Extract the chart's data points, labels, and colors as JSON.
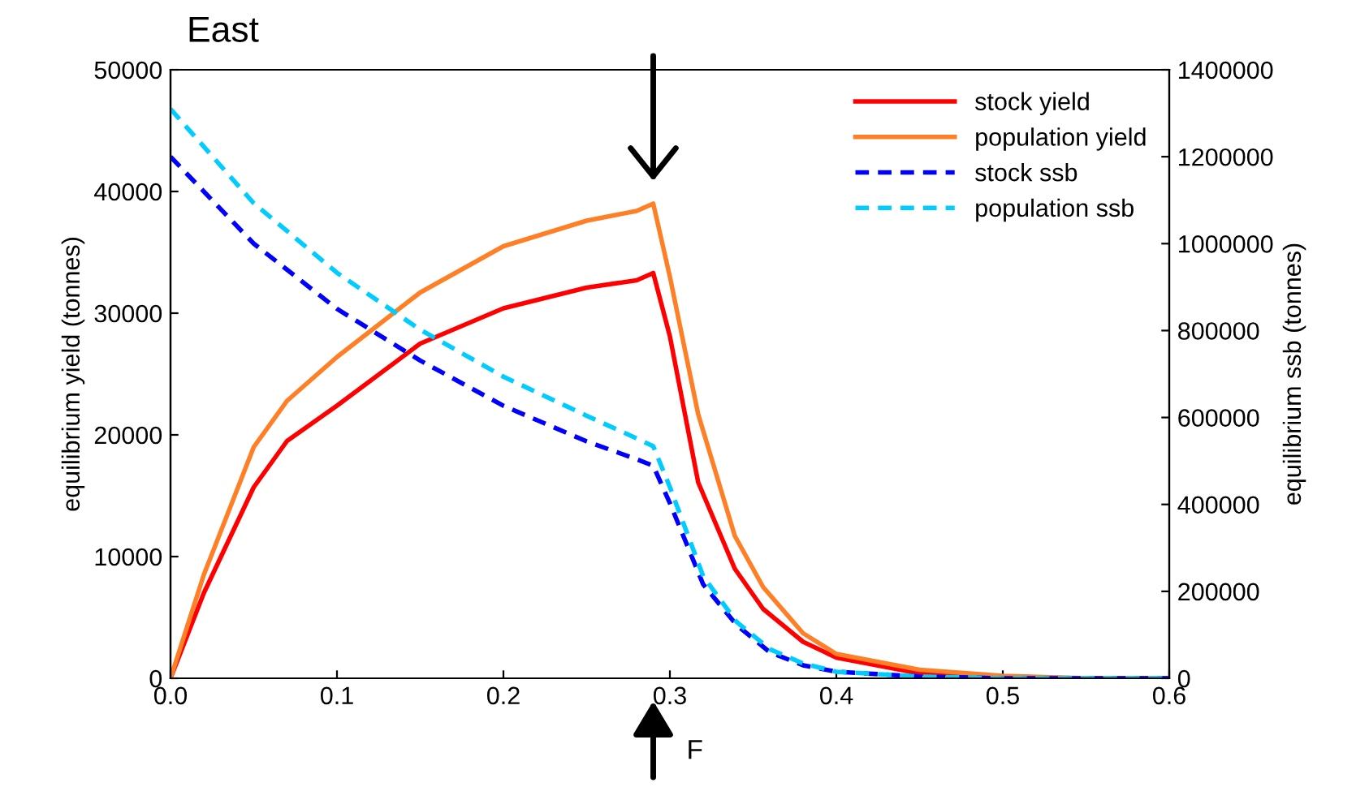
{
  "chart_data": {
    "type": "line",
    "title": "East",
    "xlabel": "F",
    "ylabel": "equilibrium yield (tonnes)",
    "y2label": "equilibrium ssb (tonnes)",
    "xlim": [
      0,
      0.6
    ],
    "xticks": [
      {
        "value": 0,
        "label": "0.0"
      },
      0.1,
      0.2,
      0.3,
      0.4,
      0.5,
      0.6
    ],
    "ylim": [
      0,
      50000
    ],
    "yticks": [
      0,
      10000,
      20000,
      30000,
      40000,
      50000
    ],
    "y2lim": [
      0,
      1400000
    ],
    "y2ticks": [
      0,
      200000,
      400000,
      600000,
      800000,
      1000000,
      1200000,
      1400000
    ],
    "legend": "top right",
    "grid": false,
    "series": [
      {
        "name": "stock yield",
        "color": "#ff0000",
        "line_style": "solid",
        "x": [
          0,
          0.02,
          0.05,
          0.07,
          0.1,
          0.15,
          0.2,
          0.25,
          0.28,
          0.29,
          0.3,
          0.317,
          0.339,
          0.356,
          0.38,
          0.4,
          0.45,
          0.5,
          0.55,
          0.6
        ],
        "values": [
          0,
          7000,
          15700,
          19500,
          22400,
          27500,
          30400,
          32100,
          32700,
          33300,
          28100,
          16100,
          9000,
          5700,
          3000,
          1700,
          400,
          100,
          0,
          0
        ]
      },
      {
        "name": "population yield",
        "color": "#ff7f27",
        "line_style": "solid",
        "x": [
          0,
          0.02,
          0.05,
          0.07,
          0.1,
          0.15,
          0.2,
          0.25,
          0.28,
          0.29,
          0.3,
          0.317,
          0.339,
          0.356,
          0.38,
          0.4,
          0.45,
          0.5,
          0.55,
          0.6
        ],
        "values": [
          0,
          8500,
          19000,
          22800,
          26400,
          31700,
          35500,
          37600,
          38400,
          39000,
          33000,
          21700,
          11700,
          7500,
          3700,
          2000,
          700,
          200,
          0,
          0
        ]
      },
      {
        "name": "stock ssb",
        "color": "#0000ff",
        "line_style": "dashed",
        "axis": "y2",
        "x": [
          0,
          0.05,
          0.1,
          0.15,
          0.2,
          0.25,
          0.28,
          0.29,
          0.3,
          0.32,
          0.34,
          0.36,
          0.38,
          0.4,
          0.45,
          0.5,
          0.6
        ],
        "values": [
          1200000,
          1000000,
          850000,
          731000,
          627000,
          545000,
          504000,
          489000,
          403000,
          216000,
          123000,
          60000,
          30000,
          15000,
          4000,
          0,
          0
        ]
      },
      {
        "name": "population ssb",
        "color": "#00ccff",
        "line_style": "dashed",
        "axis": "y2",
        "x": [
          0,
          0.05,
          0.1,
          0.15,
          0.2,
          0.25,
          0.28,
          0.29,
          0.3,
          0.32,
          0.34,
          0.36,
          0.38,
          0.4,
          0.45,
          0.5,
          0.6
        ],
        "values": [
          1310000,
          1093000,
          933000,
          802000,
          694000,
          604000,
          552000,
          534000,
          440000,
          235000,
          130000,
          67000,
          34000,
          15000,
          4000,
          0,
          0
        ]
      }
    ]
  }
}
